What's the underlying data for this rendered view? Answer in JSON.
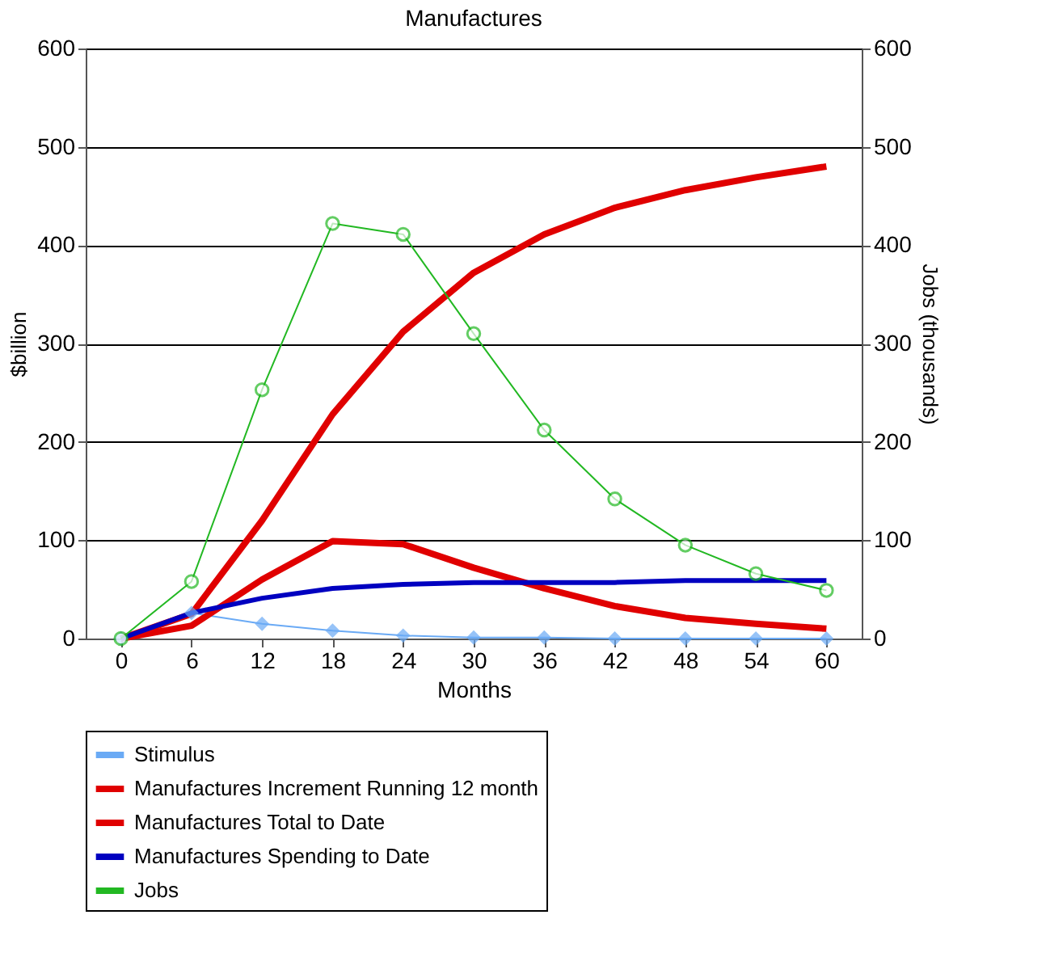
{
  "chart_data": {
    "type": "line",
    "title": "Manufactures",
    "xlabel": "Months",
    "ylabel": "$billion",
    "y2label": "Jobs (thousands)",
    "categories": [
      "0",
      "6",
      "12",
      "18",
      "24",
      "30",
      "36",
      "42",
      "48",
      "54",
      "60"
    ],
    "series": [
      {
        "name": "Stimulus",
        "color": "#6aaaf5",
        "marker": "diamond",
        "values": [
          0,
          26,
          15,
          8,
          3,
          1,
          1,
          0,
          0,
          0,
          0
        ]
      },
      {
        "name": "Manufactures Increment Running 12 month",
        "color": "#e00000",
        "marker": "none",
        "values": [
          0,
          13,
          60,
          99,
          96,
          72,
          51,
          33,
          21,
          15,
          10
        ]
      },
      {
        "name": "Manufactures Total to Date",
        "color": "#e00000",
        "marker": "none",
        "values": [
          0,
          25,
          120,
          228,
          312,
          372,
          411,
          438,
          456,
          469,
          480
        ]
      },
      {
        "name": "Manufactures Spending to Date",
        "color": "#0000c0",
        "marker": "none",
        "values": [
          0,
          26,
          41,
          51,
          55,
          57,
          57,
          57,
          59,
          59,
          59
        ]
      },
      {
        "name": "Jobs",
        "color": "#22b822",
        "marker": "circle",
        "axis": "y2",
        "values": [
          0,
          58,
          253,
          422,
          411,
          310,
          212,
          142,
          95,
          66,
          49
        ]
      }
    ],
    "ylim": [
      0,
      600
    ],
    "yticks": [
      0,
      100,
      200,
      300,
      400,
      500,
      600
    ],
    "y2lim": [
      0,
      600
    ],
    "y2ticks": [
      0,
      100,
      200,
      300,
      400,
      500,
      600
    ],
    "grid": "y",
    "legend": "bottom"
  }
}
